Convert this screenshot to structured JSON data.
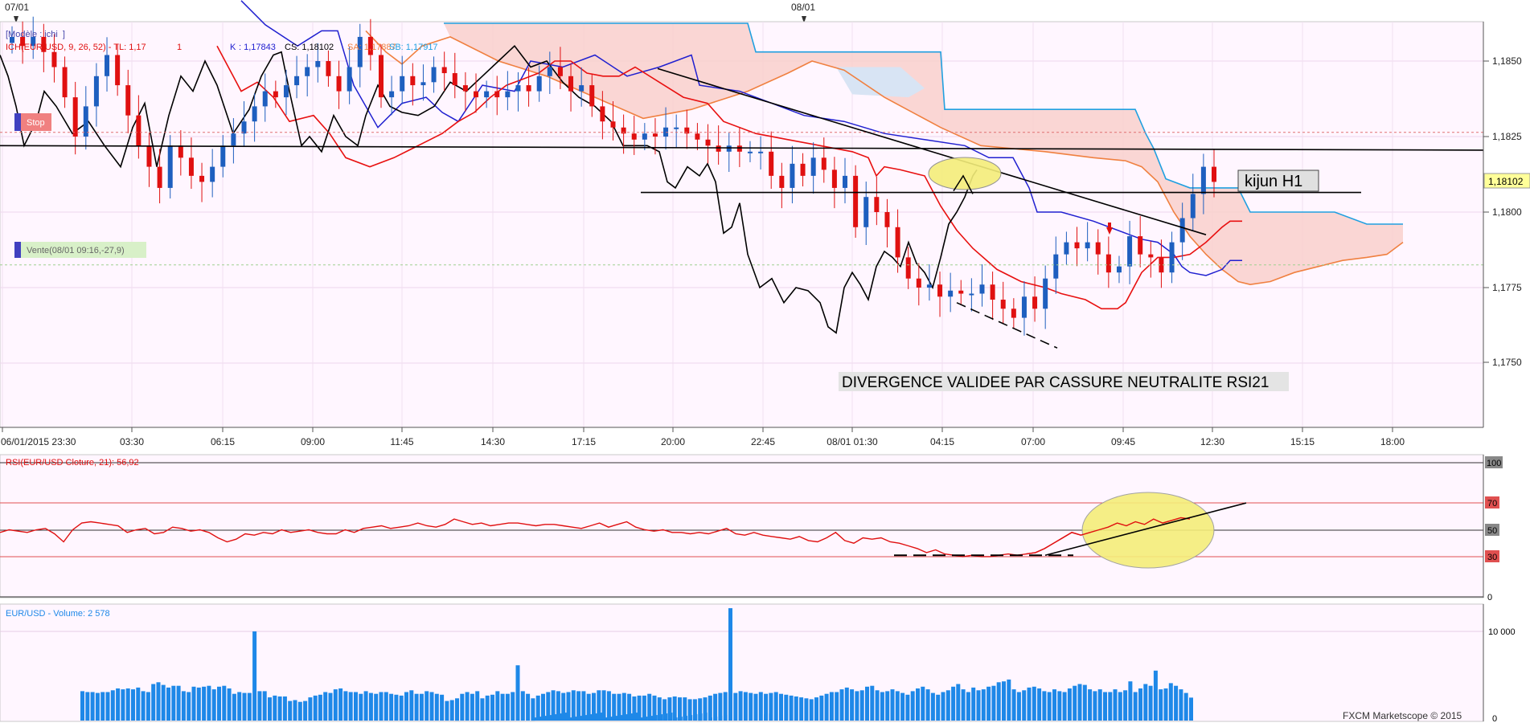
{
  "top_dates": [
    "07/01",
    "08/01"
  ],
  "x_axis_labels": [
    "06/01/2015 23:30",
    "03:30",
    "06:15",
    "09:00",
    "11:45",
    "14:30",
    "17:15",
    "20:00",
    "22:45",
    "08/01 01:30",
    "04:15",
    "07:00",
    "09:45",
    "12:30",
    "15:15",
    "18:00"
  ],
  "price_panel": {
    "model_label": "[Modèle : ichi",
    "model_label_end": "]",
    "ich_label": "ICH(EUR/USD, 9, 26, 52) - TL: 1,17",
    "ich_tl_tail": "1",
    "ks_label": "K",
    "ks_value": ": 1,17843",
    "cs_label": "CS: 1,18102",
    "sa_label": "SA: 1,17887",
    "sb_label": "SB: 1,17917",
    "stop_label": "Stop",
    "vente_label": "Vente(08/01 09:16,-27,9)",
    "last_price_badge": "1,18102",
    "kijun_annotation": "kijun H1",
    "divergence_annotation": "DIVERGENCE VALIDEE PAR CASSURE NEUTRALITE RSI21",
    "y_ticks": [
      "1,1850",
      "1,1825",
      "1,1800",
      "1,1775",
      "1,1750"
    ]
  },
  "rsi_panel": {
    "label": "RSI(EUR/USD Cloture, 21): 56,92",
    "y_ticks": [
      "100",
      "70",
      "50",
      "30",
      "0"
    ]
  },
  "volume_panel": {
    "label": "EUR/USD - Volume: 2 578",
    "y_ticks": [
      "10 000",
      "0"
    ],
    "copyright": "FXCM Marketscope © 2015"
  },
  "colors": {
    "up_candle": "#1e5fbf",
    "down_candle": "#e01010",
    "tenkan": "#e81010",
    "kijun": "#2020d0",
    "span_a": "#f08040",
    "span_b": "#20a0e0",
    "chikou": "#000000",
    "kumo_bear": "#f9d0cc",
    "kumo_bull": "#d8e4f4",
    "rsi_line": "#e01010",
    "volume_bar": "#1e88e8",
    "annotation_ellipse": "#f4ee7a"
  },
  "chart_data": [
    {
      "type": "candlestick",
      "title": "EUR/USD",
      "ylim": [
        1.1727,
        1.1865
      ],
      "indicators": [
        "Ichimoku (9, 26, 52)",
        "Tenkan",
        "Kijun",
        "Senkou Span A",
        "Senkou Span B",
        "Chikou"
      ],
      "last": 1.18102,
      "close_series": [
        1.1858,
        1.1855,
        1.1858,
        1.1853,
        1.1848,
        1.1838,
        1.1825,
        1.1835,
        1.1845,
        1.1852,
        1.1842,
        1.1832,
        1.1822,
        1.1815,
        1.1808,
        1.1822,
        1.1818,
        1.1812,
        1.181,
        1.1815,
        1.1822,
        1.1826,
        1.183,
        1.1835,
        1.184,
        1.1838,
        1.1842,
        1.1845,
        1.1848,
        1.185,
        1.1845,
        1.184,
        1.1848,
        1.1858,
        1.1852,
        1.1838,
        1.184,
        1.1845,
        1.1842,
        1.1843,
        1.1848,
        1.1846,
        1.1842,
        1.184,
        1.1838,
        1.184,
        1.1838,
        1.184,
        1.1842,
        1.184,
        1.1845,
        1.1848,
        1.1845,
        1.184,
        1.1842,
        1.1835,
        1.183,
        1.1828,
        1.1826,
        1.1824,
        1.1826,
        1.1825,
        1.1828,
        1.1828,
        1.1826,
        1.1824,
        1.1822,
        1.182,
        1.1822,
        1.182,
        1.182,
        1.182,
        1.1812,
        1.1808,
        1.1816,
        1.1812,
        1.1818,
        1.1814,
        1.1808,
        1.1812,
        1.1795,
        1.1805,
        1.18,
        1.1795,
        1.1785,
        1.1778,
        1.1775,
        1.1776,
        1.1772,
        1.1774,
        1.1773,
        1.1773,
        1.1776,
        1.1771,
        1.1768,
        1.1765,
        1.1772,
        1.1768,
        1.1778,
        1.1786,
        1.179,
        1.1788,
        1.179,
        1.1786,
        1.178,
        1.1782,
        1.1792,
        1.1786,
        1.1785,
        1.178,
        1.179,
        1.1798,
        1.1806,
        1.1815,
        1.181
      ]
    },
    {
      "type": "line",
      "title": "RSI(EUR/USD Cloture, 21)",
      "ylim": [
        0,
        100
      ],
      "levels": [
        30,
        50,
        70
      ],
      "last": 56.92,
      "values": [
        48,
        50,
        49,
        48,
        50,
        51,
        47,
        41,
        50,
        55,
        56,
        55,
        54,
        53,
        48,
        50,
        51,
        47,
        48,
        52,
        51,
        49,
        50,
        48,
        44,
        41,
        43,
        47,
        46,
        48,
        47,
        50,
        48,
        49,
        50,
        48,
        47,
        47,
        50,
        48,
        51,
        52,
        53,
        51,
        52,
        53,
        55,
        53,
        52,
        54,
        58,
        56,
        54,
        55,
        53,
        54,
        55,
        55,
        54,
        53,
        54,
        54,
        53,
        52,
        51,
        53,
        55,
        52,
        54,
        56,
        52,
        50,
        49,
        50,
        48,
        48,
        47,
        48,
        47,
        49,
        51,
        47,
        46,
        48,
        46,
        45,
        44,
        43,
        45,
        42,
        41,
        44,
        48,
        42,
        40,
        44,
        43,
        44,
        41,
        40,
        38,
        36,
        33,
        35,
        32,
        31,
        30,
        31,
        30,
        30,
        31,
        32,
        31,
        32,
        33,
        36,
        40,
        44,
        48,
        46,
        48,
        50,
        52,
        55,
        53,
        56,
        54,
        58,
        55,
        57,
        59,
        58
      ]
    },
    {
      "type": "bar",
      "title": "EUR/USD - Volume",
      "ylim": [
        0,
        14000
      ],
      "last": 2578,
      "values": [
        3300,
        3200,
        3200,
        3100,
        3200,
        3200,
        3400,
        3600,
        3500,
        3600,
        3500,
        3700,
        3300,
        3200,
        4100,
        4300,
        4000,
        3700,
        3900,
        3900,
        3300,
        3200,
        3800,
        3700,
        3800,
        3900,
        3500,
        3800,
        3900,
        3600,
        3000,
        3200,
        3100,
        3100,
        3400,
        3300,
        3300,
        2600,
        2800,
        2700,
        2700,
        2200,
        2300,
        2100,
        2200,
        2600,
        2800,
        2900,
        3200,
        3100,
        3500,
        3600,
        3300,
        3200,
        3200,
        3000,
        3300,
        3100,
        3000,
        3200,
        3200,
        3000,
        2900,
        2800,
        3200,
        3400,
        3000,
        3000,
        3300,
        3200,
        3000,
        2900,
        2200,
        2300,
        2500,
        3000,
        3200,
        3000,
        3300,
        2500,
        2800,
        2900,
        3300,
        3000,
        3000,
        3200,
        3500,
        3300,
        3000,
        2500,
        2800,
        3000,
        3200,
        3400,
        3300,
        3100,
        3200,
        3400,
        3300,
        3300,
        3000,
        3100,
        3400,
        3400,
        3300,
        3000,
        3000,
        3100,
        3000,
        2700,
        2800,
        2800,
        3000,
        2800,
        2600,
        2400,
        2600,
        2700,
        2600,
        2600,
        2400,
        2400,
        2500,
        2600,
        2800,
        3000,
        3100,
        3200,
        3000,
        3100,
        3300,
        3200,
        3100,
        3000,
        3200,
        3000,
        3100,
        3200,
        3000,
        2900,
        2800,
        2700,
        2600,
        2500,
        2400,
        2600,
        2800,
        3000,
        3200,
        3200,
        3500,
        3700,
        3500,
        3300,
        3400,
        3800,
        3900,
        3400,
        3200,
        3300,
        3500,
        3300,
        3100,
        2900,
        3300,
        3600,
        3800,
        3500,
        3100,
        2900,
        3200,
        3400,
        3800,
        4100,
        3500,
        3200,
        3700,
        3400,
        3500,
        3800,
        3900,
        4300,
        4400,
        4600,
        3500,
        3200,
        3400,
        3700,
        3800,
        3600,
        3300,
        3200,
        3500,
        3300,
        3200,
        3600,
        3900,
        4100,
        4000,
        3500,
        3300,
        3500,
        3200,
        3200,
        3500,
        3200,
        3400,
        4400,
        3200,
        3600,
        4100,
        3900,
        3200,
        3500,
        3600,
        4200,
        3900,
        3500,
        3100,
        2578
      ]
    }
  ]
}
